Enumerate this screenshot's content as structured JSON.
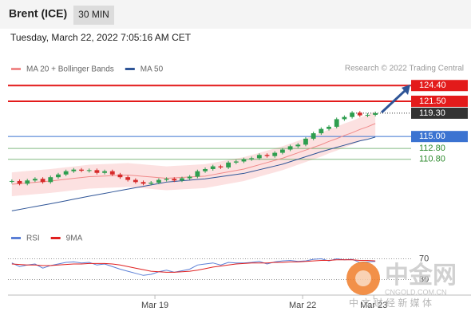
{
  "header": {
    "symbol": "Brent (ICE)",
    "timeframe": "30 MIN",
    "datetime": "Tuesday, March 22, 2022 7:05:16 AM CET"
  },
  "chart_data": {
    "type": "candlestick",
    "legend": [
      {
        "name": "MA 20 + Bollinger Bands",
        "color": "#f08a8a"
      },
      {
        "name": "MA 50",
        "color": "#2f5597"
      }
    ],
    "credit": "Research © 2022 Trading Central",
    "xlim": [
      -0.5,
      47.5
    ],
    "ylim": [
      99,
      126.2
    ],
    "xticks": [
      {
        "value": 18.5,
        "label": "Mar 19"
      },
      {
        "value": 37.6,
        "label": "Mar 22"
      },
      {
        "value": 46.8,
        "label": "Mar 23"
      }
    ],
    "closes": [
      106.8,
      106.3,
      106.9,
      107.2,
      106.6,
      107.5,
      108.0,
      108.6,
      108.9,
      108.7,
      108.8,
      108.3,
      108.6,
      108.0,
      107.5,
      107.0,
      106.6,
      106.3,
      106.5,
      107.0,
      107.2,
      106.9,
      107.3,
      107.6,
      108.6,
      109.0,
      109.5,
      109.3,
      110.2,
      110.4,
      110.8,
      111.0,
      111.6,
      111.4,
      112.0,
      112.6,
      113.2,
      113.5,
      114.6,
      115.6,
      116.4,
      116.8,
      118.2,
      118.6,
      119.4,
      118.9,
      119.0,
      119.3
    ],
    "up_color": "#2e9e4f",
    "down_color": "#d62a2a",
    "series": [
      {
        "name": "MA 20",
        "color": "#f08a8a",
        "values": [
          106.2,
          106.32,
          106.44,
          106.56,
          106.68,
          106.8,
          106.96,
          107.12,
          107.28,
          107.44,
          107.6,
          107.66,
          107.72,
          107.78,
          107.84,
          107.9,
          107.78,
          107.66,
          107.54,
          107.42,
          107.3,
          107.38,
          107.46,
          107.54,
          107.62,
          107.7,
          107.96,
          108.22,
          108.48,
          108.74,
          109.0,
          109.4,
          109.8,
          110.2,
          110.6,
          111.0,
          111.5,
          112.0,
          112.5,
          113.0,
          113.5,
          114.1,
          114.6,
          115.2,
          115.7,
          116.3,
          116.8,
          117.4
        ]
      },
      {
        "name": "MA 50",
        "color": "#2f5597",
        "values": [
          101.3,
          101.56,
          101.82,
          102.08,
          102.34,
          102.6,
          102.88,
          103.16,
          103.44,
          103.72,
          104.0,
          104.26,
          104.52,
          104.78,
          105.04,
          105.3,
          105.56,
          105.82,
          106.08,
          106.34,
          106.6,
          106.72,
          106.84,
          106.96,
          107.08,
          107.2,
          107.4,
          107.6,
          107.8,
          108.0,
          108.2,
          108.54,
          108.88,
          109.22,
          109.56,
          109.9,
          110.36,
          110.82,
          111.28,
          111.74,
          112.2,
          112.6,
          113.0,
          113.4,
          113.8,
          114.2,
          114.5,
          114.9
        ]
      }
    ],
    "bands": {
      "color": "#fbdada",
      "upper": [
        108.4,
        108.52,
        108.64,
        108.76,
        108.88,
        109.0,
        109.16,
        109.32,
        109.48,
        109.64,
        109.8,
        109.86,
        109.92,
        109.98,
        110.04,
        110.1,
        109.98,
        109.86,
        109.74,
        109.62,
        109.5,
        109.58,
        109.66,
        109.74,
        109.82,
        109.9,
        110.16,
        110.42,
        110.68,
        110.94,
        111.2,
        111.6,
        112.0,
        112.4,
        112.8,
        113.2,
        113.7,
        114.2,
        114.7,
        115.2,
        115.7,
        116.3,
        116.8,
        117.4,
        117.9,
        118.5,
        119.0,
        119.6
      ],
      "lower": [
        104.0,
        104.12,
        104.24,
        104.36,
        104.48,
        104.6,
        104.76,
        104.92,
        105.08,
        105.24,
        105.4,
        105.46,
        105.52,
        105.58,
        105.64,
        105.7,
        105.58,
        105.46,
        105.34,
        105.22,
        105.1,
        105.18,
        105.26,
        105.34,
        105.42,
        105.5,
        105.76,
        106.02,
        106.28,
        106.54,
        106.8,
        107.2,
        107.6,
        108.0,
        108.4,
        108.8,
        109.3,
        109.8,
        110.3,
        110.8,
        111.3,
        111.9,
        112.4,
        113.0,
        113.5,
        114.1,
        114.6,
        115.2
      ]
    },
    "levels": [
      {
        "value": 124.4,
        "label": "124.40",
        "color": "#e31b1b",
        "style": "box"
      },
      {
        "value": 121.5,
        "label": "121.50",
        "color": "#e31b1b",
        "style": "box"
      },
      {
        "value": 119.3,
        "label": "119.30",
        "color": "#333333",
        "style": "last"
      },
      {
        "value": 115,
        "label": "115.00",
        "color": "#3b73d1",
        "style": "box"
      },
      {
        "value": 112.8,
        "label": "112.80",
        "color": "#2e8b2e",
        "style": "text"
      },
      {
        "value": 110.8,
        "label": "110.80",
        "color": "#2e8b2e",
        "style": "text"
      }
    ],
    "rsi": {
      "ylim": [
        0,
        100
      ],
      "yticks": [
        70,
        30
      ],
      "series": [
        {
          "name": "RSI",
          "color": "#5b7fd6",
          "values": [
            62,
            55,
            58,
            60,
            52,
            57,
            60,
            63,
            64,
            62,
            63,
            58,
            60,
            55,
            50,
            46,
            42,
            38,
            40,
            45,
            48,
            44,
            47,
            50,
            58,
            60,
            62,
            58,
            63,
            62,
            62,
            63,
            65,
            60,
            64,
            66,
            67,
            65,
            66,
            69,
            70,
            66,
            70,
            68,
            69,
            63,
            64,
            65
          ]
        },
        {
          "name": "9MA",
          "color": "#e02020",
          "values": [
            60,
            59,
            58,
            58,
            57,
            57,
            58,
            59,
            60,
            60,
            61,
            61,
            61,
            60,
            58,
            55,
            52,
            49,
            46,
            45,
            44,
            44,
            45,
            46,
            48,
            51,
            54,
            56,
            58,
            60,
            61,
            62,
            62,
            62,
            63,
            63,
            64,
            64,
            65,
            66,
            67,
            67,
            68,
            68,
            68,
            67,
            67,
            66
          ]
        }
      ]
    }
  },
  "watermark": {
    "brand": "中金网",
    "domain": "CNGOLD.COM.CN",
    "slogan": "中 文 财 经 新 媒 体"
  }
}
